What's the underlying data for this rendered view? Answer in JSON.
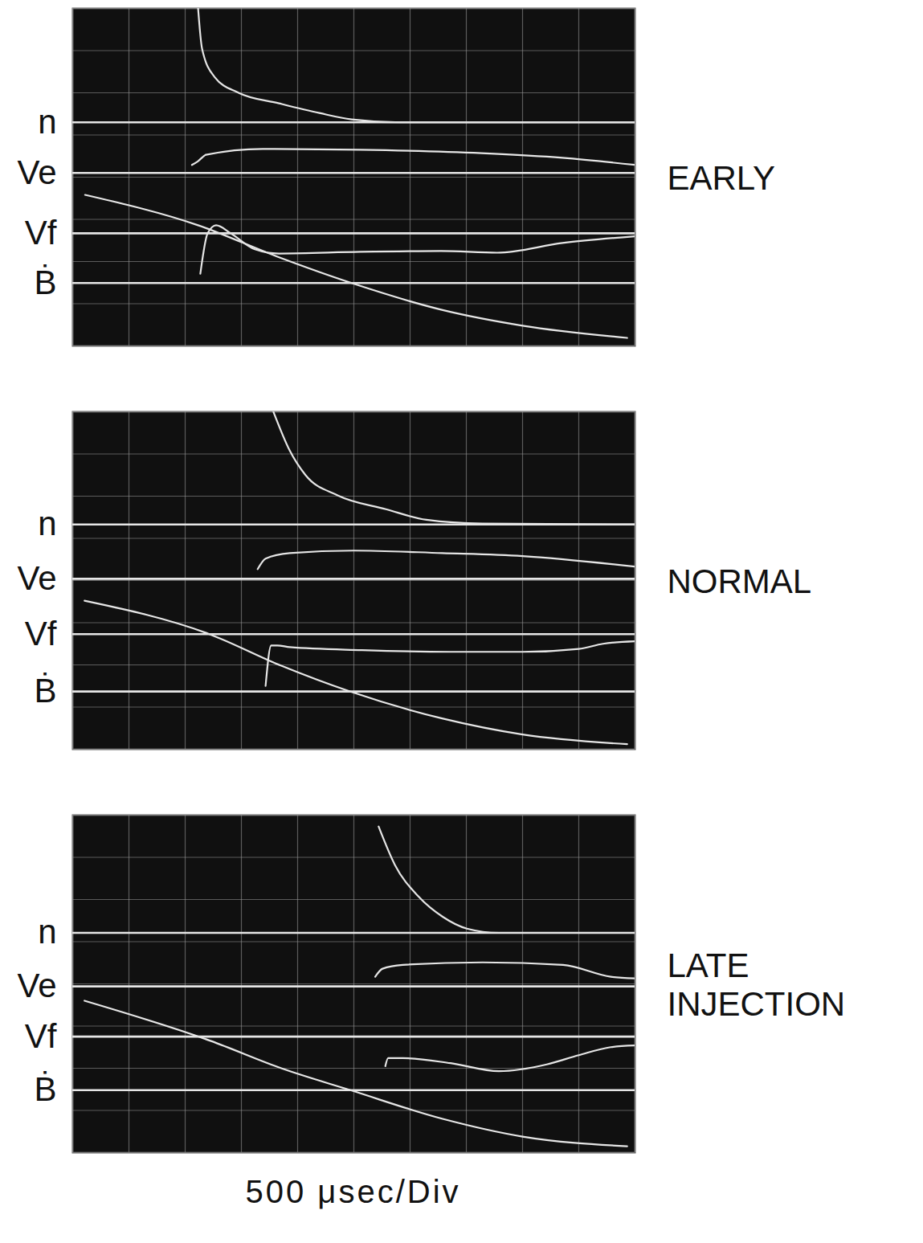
{
  "chart_data": [
    {
      "type": "line",
      "title": "EARLY",
      "xlim": [
        0,
        10
      ],
      "ylim": [
        0,
        8
      ],
      "xticks": [
        0,
        1,
        2,
        3,
        4,
        5,
        6,
        7,
        8,
        9,
        10
      ],
      "yticks": [
        0,
        1,
        2,
        3,
        4,
        5,
        6,
        7,
        8
      ],
      "grid": true,
      "tick_labels": false,
      "series": [
        {
          "name": "n",
          "color": "#e6e6e6",
          "baseline": 5.3,
          "x": [
            2.23,
            2.3,
            2.52,
            2.95,
            3.67,
            4.39,
            4.96,
            5.83,
            10
          ],
          "values": [
            8.0,
            7.05,
            6.38,
            6.0,
            5.75,
            5.52,
            5.37,
            5.3,
            5.3
          ]
        },
        {
          "name": "Ve",
          "color": "#e6e6e6",
          "baseline": 4.1,
          "x": [
            2.12,
            2.23,
            2.37,
            3.38,
            5.11,
            7.27,
            8.71,
            10
          ],
          "values": [
            4.29,
            4.38,
            4.53,
            4.67,
            4.65,
            4.57,
            4.46,
            4.29
          ]
        },
        {
          "name": "Vf",
          "color": "#e6e6e6",
          "baseline": 2.67,
          "x": [
            2.27,
            2.4,
            2.55,
            2.81,
            3.24,
            3.67,
            5.11,
            6.55,
            7.55,
            8.71,
            10
          ],
          "values": [
            1.71,
            2.67,
            2.86,
            2.67,
            2.29,
            2.19,
            2.23,
            2.25,
            2.21,
            2.44,
            2.6
          ]
        },
        {
          "name": "Ḃ",
          "color": "#e6e6e6",
          "baseline": 1.49,
          "x": [
            0.22,
            2.23,
            3.67,
            4.96,
            6.55,
            8.0,
            9.86
          ],
          "values": [
            3.58,
            2.86,
            2.1,
            1.49,
            0.86,
            0.48,
            0.19
          ]
        }
      ]
    },
    {
      "type": "line",
      "title": "NORMAL",
      "xlim": [
        0,
        10
      ],
      "ylim": [
        0,
        8
      ],
      "xticks": [
        0,
        1,
        2,
        3,
        4,
        5,
        6,
        7,
        8,
        9,
        10
      ],
      "yticks": [
        0,
        1,
        2,
        3,
        4,
        5,
        6,
        7,
        8
      ],
      "grid": true,
      "tick_labels": false,
      "series": [
        {
          "name": "n",
          "color": "#e6e6e6",
          "baseline": 5.33,
          "x": [
            3.57,
            3.86,
            4.14,
            4.71,
            5.57,
            6.29,
            7.29,
            10
          ],
          "values": [
            8.0,
            7.08,
            6.5,
            6.02,
            5.69,
            5.44,
            5.35,
            5.33
          ]
        },
        {
          "name": "Ve",
          "color": "#e6e6e6",
          "baseline": 4.04,
          "x": [
            3.29,
            3.43,
            3.86,
            5.0,
            6.57,
            8.0,
            10
          ],
          "values": [
            4.27,
            4.52,
            4.65,
            4.71,
            4.65,
            4.58,
            4.33
          ]
        },
        {
          "name": "Vf",
          "color": "#e6e6e6",
          "baseline": 2.73,
          "x": [
            3.43,
            3.53,
            3.64,
            3.86,
            5.14,
            6.71,
            8.0,
            9.0,
            9.43,
            10
          ],
          "values": [
            1.5,
            2.46,
            2.46,
            2.42,
            2.35,
            2.31,
            2.31,
            2.38,
            2.5,
            2.56
          ]
        },
        {
          "name": "Ḃ",
          "color": "#e6e6e6",
          "baseline": 1.37,
          "x": [
            0.21,
            2.43,
            3.71,
            4.93,
            6.57,
            8.0,
            9.86
          ],
          "values": [
            3.52,
            2.73,
            1.98,
            1.37,
            0.73,
            0.35,
            0.12
          ]
        }
      ]
    },
    {
      "type": "line",
      "title": "LATE INJECTION",
      "xlabel": "500 μsec/Div",
      "xlim": [
        0,
        10
      ],
      "ylim": [
        0,
        8
      ],
      "xticks": [
        0,
        1,
        2,
        3,
        4,
        5,
        6,
        7,
        8,
        9,
        10
      ],
      "yticks": [
        0,
        1,
        2,
        3,
        4,
        5,
        6,
        7,
        8
      ],
      "grid": true,
      "tick_labels": false,
      "series": [
        {
          "name": "n",
          "color": "#e6e6e6",
          "baseline": 5.21,
          "x": [
            5.44,
            5.73,
            6.15,
            6.58,
            7.01,
            7.58,
            10
          ],
          "values": [
            7.73,
            6.82,
            6.07,
            5.59,
            5.31,
            5.21,
            5.21
          ]
        },
        {
          "name": "Ve",
          "color": "#e6e6e6",
          "baseline": 3.94,
          "x": [
            5.38,
            5.51,
            5.87,
            7.29,
            8.72,
            9.57,
            10
          ],
          "values": [
            4.17,
            4.36,
            4.45,
            4.51,
            4.45,
            4.17,
            4.13
          ]
        },
        {
          "name": "Vf",
          "color": "#e6e6e6",
          "baseline": 2.75,
          "x": [
            5.56,
            5.61,
            5.87,
            6.72,
            7.58,
            8.43,
            9.0,
            9.57,
            10
          ],
          "values": [
            2.05,
            2.24,
            2.24,
            2.12,
            1.93,
            2.09,
            2.31,
            2.5,
            2.54
          ]
        },
        {
          "name": "Ḃ",
          "color": "#e6e6e6",
          "baseline": 1.48,
          "x": [
            0.21,
            2.45,
            3.73,
            4.94,
            6.58,
            8.0,
            9.86
          ],
          "values": [
            3.6,
            2.65,
            1.99,
            1.48,
            0.8,
            0.38,
            0.15
          ]
        }
      ]
    }
  ]
}
